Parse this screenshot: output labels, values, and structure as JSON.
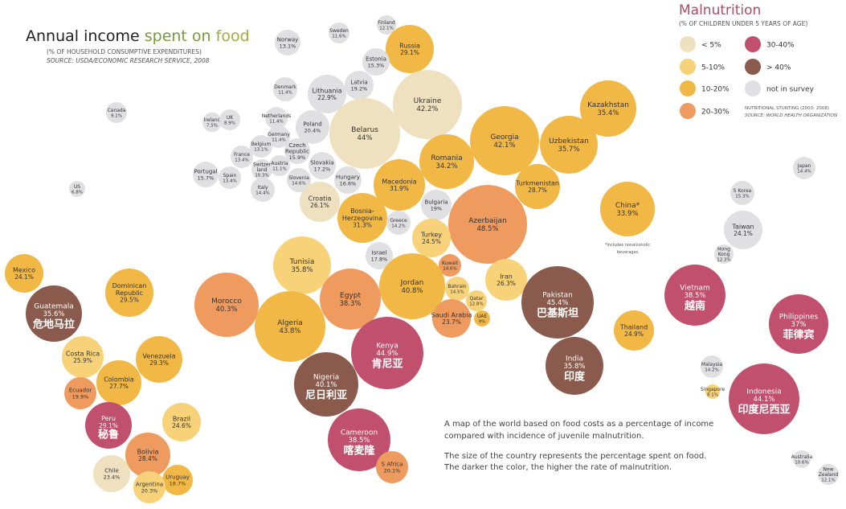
{
  "header": {
    "title_part1": "Annual income",
    "title_part2": "spent on",
    "title_part3": "food",
    "subtitle": "(% OF HOUSEHOLD CONSUMPTIVE EXPENDITURES)",
    "source": "SOURCE: USDA/ECONOMIC RESEARCH SERVICE, 2008"
  },
  "legend": {
    "title": "Malnutrition",
    "subtitle": "(% OF CHILDREN UNDER 5 YEARS OF AGE)",
    "items": [
      {
        "label": "< 5%",
        "color": "#EFE1C0"
      },
      {
        "label": "5-10%",
        "color": "#F8D278"
      },
      {
        "label": "10-20%",
        "color": "#F2B845"
      },
      {
        "label": "20-30%",
        "color": "#EF9A5E"
      },
      {
        "label": "30-40%",
        "color": "#C0506E"
      },
      {
        "label": "> 40%",
        "color": "#8A5A4C"
      },
      {
        "label": "not in survey",
        "color": "#E0DFE1"
      }
    ],
    "note": "NUTRITIONAL STUNTING (2003- 2008)",
    "note_source": "SOURCE: WORLD HEALTH ORGANIZATION"
  },
  "description": {
    "line1": "A map of the world based on food costs as a percentage of income",
    "line2": "compared with incidence of juvenile malnutrition.",
    "line3": "The size of the country represents the percentage spent on food.",
    "line4": "The darker the color, the higher the rate of malnutrition."
  },
  "china_note": {
    "line1": "*Includes nonalcoholic",
    "line2": "beverages"
  },
  "chart_data": {
    "type": "bubble",
    "value_unit": "% of household consumptive expenditures spent on food",
    "color_key": "malnutrition category",
    "points": [
      {
        "name": "Finland",
        "value": "12.1%",
        "category": "not in survey"
      },
      {
        "name": "Sweden",
        "value": "11.6%",
        "category": "not in survey"
      },
      {
        "name": "Norway",
        "value": "13.1%",
        "category": "not in survey"
      },
      {
        "name": "Russia",
        "value": "29.1%",
        "category": "10-20%"
      },
      {
        "name": "Estonia",
        "value": "15.3%",
        "category": "not in survey"
      },
      {
        "name": "Latvia",
        "value": "19.2%",
        "category": "not in survey"
      },
      {
        "name": "Lithuania",
        "value": "22.9%",
        "category": "not in survey"
      },
      {
        "name": "Denmark",
        "value": "11.4%",
        "category": "not in survey"
      },
      {
        "name": "Ukraine",
        "value": "42.2%",
        "category": "< 5%"
      },
      {
        "name": "Belarus",
        "value": "44%",
        "category": "< 5%"
      },
      {
        "name": "Canada",
        "value": "9.1%",
        "category": "not in survey"
      },
      {
        "name": "Ireland",
        "value": "7.5%",
        "category": "not in survey"
      },
      {
        "name": "UK",
        "value": "8.9%",
        "category": "not in survey"
      },
      {
        "name": "Netherlands",
        "value": "11.4%",
        "category": "not in survey"
      },
      {
        "name": "Poland",
        "value": "20.4%",
        "category": "not in survey"
      },
      {
        "name": "Germany",
        "value": "11.4%",
        "category": "not in survey"
      },
      {
        "name": "Belgium",
        "value": "13.1%",
        "category": "not in survey"
      },
      {
        "name": "France",
        "value": "13.4%",
        "category": "not in survey"
      },
      {
        "name": "Czech Republic",
        "value": "15.9%",
        "category": "not in survey"
      },
      {
        "name": "Austria",
        "value": "11.1%",
        "category": "not in survey"
      },
      {
        "name": "Switzerland",
        "value": "10.3%",
        "category": "not in survey"
      },
      {
        "name": "Portugal",
        "value": "15.7%",
        "category": "not in survey"
      },
      {
        "name": "Spain",
        "value": "13.4%",
        "category": "not in survey"
      },
      {
        "name": "Slovakia",
        "value": "17.2%",
        "category": "not in survey"
      },
      {
        "name": "Slovenia",
        "value": "14.6%",
        "category": "not in survey"
      },
      {
        "name": "Hungary",
        "value": "16.6%",
        "category": "not in survey"
      },
      {
        "name": "Italy",
        "value": "14.4%",
        "category": "not in survey"
      },
      {
        "name": "US",
        "value": "6.8%",
        "category": "not in survey"
      },
      {
        "name": "Croatia",
        "value": "26.1%",
        "category": "< 5%"
      },
      {
        "name": "Georgia",
        "value": "42.1%",
        "category": "10-20%"
      },
      {
        "name": "Kazakhstan",
        "value": "35.4%",
        "category": "10-20%"
      },
      {
        "name": "Romania",
        "value": "34.2%",
        "category": "10-20%"
      },
      {
        "name": "Uzbekistan",
        "value": "35.7%",
        "category": "10-20%"
      },
      {
        "name": "Macedonia",
        "value": "31.9%",
        "category": "10-20%"
      },
      {
        "name": "Turkmenistan",
        "value": "28.7%",
        "category": "10-20%"
      },
      {
        "name": "Bulgaria",
        "value": "19%",
        "category": "not in survey"
      },
      {
        "name": "Bosnia-Herzegovina",
        "value": "31.3%",
        "category": "10-20%"
      },
      {
        "name": "Greece",
        "value": "14.2%",
        "category": "not in survey"
      },
      {
        "name": "Azerbaijan",
        "value": "48.5%",
        "category": "20-30%"
      },
      {
        "name": "China*",
        "value": "33.9%",
        "category": "10-20%"
      },
      {
        "name": "Japan",
        "value": "14.4%",
        "category": "not in survey"
      },
      {
        "name": "S Korea",
        "value": "15.3%",
        "category": "not in survey"
      },
      {
        "name": "Taiwan",
        "value": "24.1%",
        "category": "not in survey"
      },
      {
        "name": "Turkey",
        "value": "24.5%",
        "category": "5-10%"
      },
      {
        "name": "Israel",
        "value": "17.8%",
        "category": "not in survey"
      },
      {
        "name": "Hong Kong",
        "value": "12.3%",
        "category": "not in survey"
      },
      {
        "name": "Mexico",
        "value": "24.1%",
        "category": "10-20%"
      },
      {
        "name": "Tunisia",
        "value": "35.8%",
        "category": "5-10%"
      },
      {
        "name": "Kuwait",
        "value": "14.6%",
        "category": "20-30%"
      },
      {
        "name": "Jordan",
        "value": "40.8%",
        "category": "10-20%"
      },
      {
        "name": "Iran",
        "value": "26.3%",
        "category": "5-10%"
      },
      {
        "name": "Egypt",
        "value": "38.3%",
        "category": "20-30%"
      },
      {
        "name": "Morocco",
        "value": "40.3%",
        "category": "20-30%"
      },
      {
        "name": "Bahrain",
        "value": "14.5%",
        "category": "5-10%"
      },
      {
        "name": "Dominican Republic",
        "value": "29.5%",
        "category": "10-20%"
      },
      {
        "name": "Pakistan",
        "value": "45.4%",
        "category": "> 40%"
      },
      {
        "name": "Vietnam",
        "value": "38.5%",
        "category": "30-40%"
      },
      {
        "name": "Qatar",
        "value": "12.8%",
        "category": "5-10%"
      },
      {
        "name": "Guatemala",
        "value": "35.6%",
        "category": "> 40%"
      },
      {
        "name": "Saudi Arabia",
        "value": "23.7%",
        "category": "20-30%"
      },
      {
        "name": "UAE",
        "value": "9%",
        "category": "10-20%"
      },
      {
        "name": "Algeria",
        "value": "43.8%",
        "category": "10-20%"
      },
      {
        "name": "Philippines",
        "value": "37%",
        "category": "30-40%"
      },
      {
        "name": "Thailand",
        "value": "24.9%",
        "category": "10-20%"
      },
      {
        "name": "Costa Rica",
        "value": "25.9%",
        "category": "5-10%"
      },
      {
        "name": "Kenya",
        "value": "44.9%",
        "category": "30-40%"
      },
      {
        "name": "Venezuela",
        "value": "29.3%",
        "category": "10-20%"
      },
      {
        "name": "India",
        "value": "35.8%",
        "category": "> 40%"
      },
      {
        "name": "Malaysia",
        "value": "14.2%",
        "category": "not in survey"
      },
      {
        "name": "Colombia",
        "value": "27.7%",
        "category": "10-20%"
      },
      {
        "name": "Nigeria",
        "value": "40.1%",
        "category": "> 40%"
      },
      {
        "name": "Ecuador",
        "value": "19.9%",
        "category": "20-30%"
      },
      {
        "name": "Singapore",
        "value": "8.1%",
        "category": "5-10%"
      },
      {
        "name": "Indonesia",
        "value": "44.1%",
        "category": "30-40%"
      },
      {
        "name": "Brazil",
        "value": "24.6%",
        "category": "5-10%"
      },
      {
        "name": "Peru",
        "value": "29.1%",
        "category": "30-40%"
      },
      {
        "name": "Cameroon",
        "value": "38.5%",
        "category": "30-40%"
      },
      {
        "name": "Bolivia",
        "value": "28.4%",
        "category": "20-30%"
      },
      {
        "name": "Chile",
        "value": "23.4%",
        "category": "< 5%"
      },
      {
        "name": "S Africa",
        "value": "20.1%",
        "category": "20-30%"
      },
      {
        "name": "Uruguay",
        "value": "18.7%",
        "category": "10-20%"
      },
      {
        "name": "Argentina",
        "value": "20.3%",
        "category": "5-10%"
      },
      {
        "name": "Australia",
        "value": "10.6%",
        "category": "not in survey"
      },
      {
        "name": "New Zealand",
        "value": "12.1%",
        "category": "not in survey"
      }
    ],
    "chinese_labels": [
      {
        "country": "Guatemala",
        "text": "危地马拉"
      },
      {
        "country": "Pakistan",
        "text": "巴基斯坦"
      },
      {
        "country": "Vietnam",
        "text": "越南"
      },
      {
        "country": "Philippines",
        "text": "菲律宾"
      },
      {
        "country": "Kenya",
        "text": "肯尼亚"
      },
      {
        "country": "India",
        "text": "印度"
      },
      {
        "country": "Nigeria",
        "text": "尼日利亚"
      },
      {
        "country": "Indonesia",
        "text": "印度尼西亚"
      },
      {
        "country": "Peru",
        "text": "秘鲁"
      },
      {
        "country": "Cameroon",
        "text": "喀麦隆"
      }
    ]
  }
}
